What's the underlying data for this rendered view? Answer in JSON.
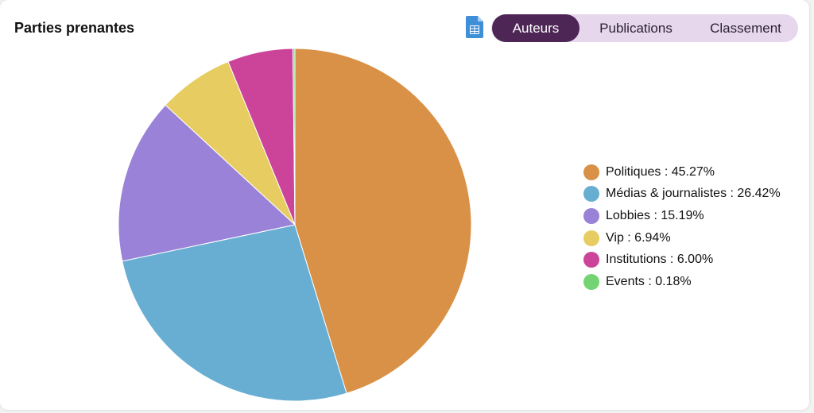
{
  "header": {
    "title": "Parties prenantes",
    "tabs": [
      {
        "label": "Auteurs",
        "active": true
      },
      {
        "label": "Publications",
        "active": false
      },
      {
        "label": "Classement",
        "active": false
      }
    ],
    "export_icon": "spreadsheet-icon"
  },
  "colors": {
    "accent": "#4d2656",
    "toggle_bg": "#e6d7ec",
    "export_icon": "#3e8fd8"
  },
  "chart_data": {
    "type": "pie",
    "categories": [
      "Politiques",
      "Médias & journalistes",
      "Lobbies",
      "Vip",
      "Institutions",
      "Events"
    ],
    "values": [
      45.27,
      26.42,
      15.19,
      6.94,
      6.0,
      0.18
    ],
    "colors": [
      "#d89147",
      "#68aed2",
      "#9a82d8",
      "#e7cd61",
      "#cc4499",
      "#74d474"
    ],
    "legend_labels": [
      "Politiques : 45.27%",
      "Médias & journalistes : 26.42%",
      "Lobbies : 15.19%",
      "Vip : 6.94%",
      "Institutions : 6.00%",
      "Events : 0.18%"
    ],
    "legend_position": "right",
    "start": "top",
    "direction": "clockwise"
  }
}
